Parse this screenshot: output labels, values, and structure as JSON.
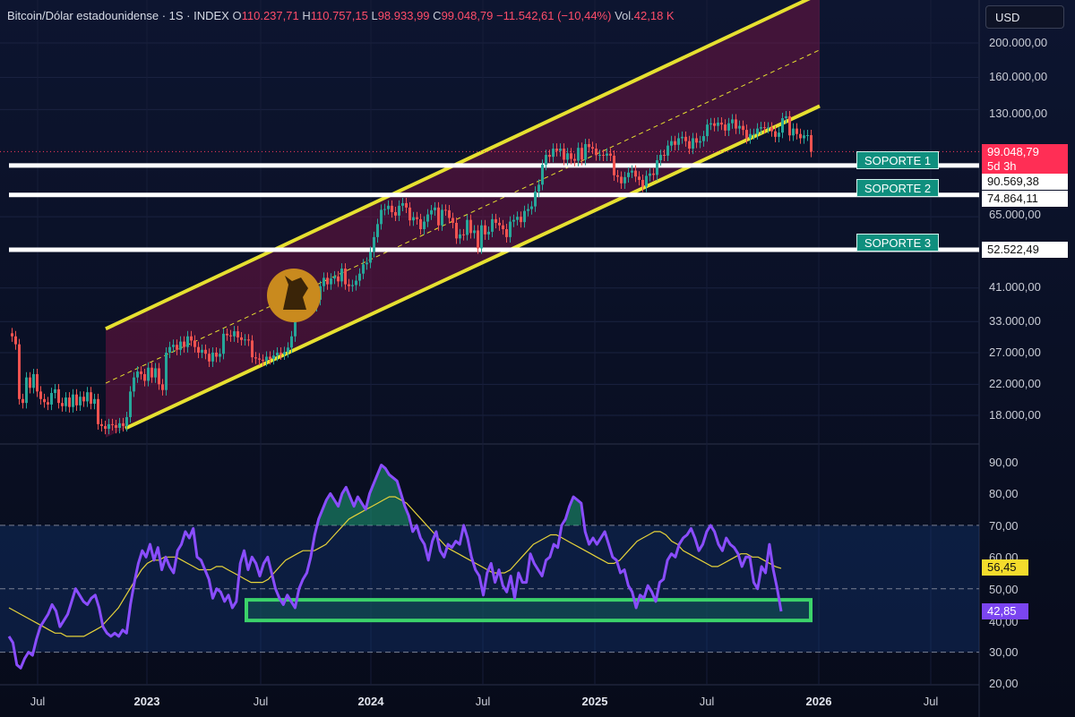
{
  "header": {
    "symbol": "Bitcoin/Dólar estadounidense · 1S · INDEX",
    "o_label": "O",
    "o_value": "110.237,71",
    "h_label": "H",
    "h_value": "110.757,15",
    "l_label": "L",
    "l_value": "98.933,99",
    "c_label": "C",
    "c_value": "99.048,79",
    "change": "−11.542,61 (−10,44%)",
    "vol_label": "Vol.",
    "vol_value": "42,18 K"
  },
  "currency_button": "USD",
  "price_axis": [
    "200.000,00",
    "160.000,00",
    "130.000,00",
    "65.000,00",
    "41.000,00",
    "33.000,00",
    "27.000,00",
    "22.000,00",
    "18.000,00"
  ],
  "rsi_axis": [
    "90,00",
    "80,00",
    "70,00",
    "60,00",
    "50,00",
    "40,00",
    "30,00",
    "20,00"
  ],
  "time_axis": [
    {
      "label": "Jul",
      "bold": false
    },
    {
      "label": "2023",
      "bold": true
    },
    {
      "label": "Jul",
      "bold": false
    },
    {
      "label": "2024",
      "bold": true
    },
    {
      "label": "Jul",
      "bold": false
    },
    {
      "label": "2025",
      "bold": true
    },
    {
      "label": "Jul",
      "bold": false
    },
    {
      "label": "2026",
      "bold": true
    },
    {
      "label": "Jul",
      "bold": false
    }
  ],
  "tags": {
    "last_price": "99.048,79",
    "countdown": "5d 3h",
    "support1_price": "90.569,38",
    "support2_price": "74.864,11",
    "support3_price": "52.522,49",
    "rsi_ma": "56,45",
    "rsi": "42,85"
  },
  "supports": [
    "SOPORTE 1",
    "SOPORTE 2",
    "SOPORTE 3"
  ],
  "colors": {
    "up": "#26a69a",
    "down": "#ef5350",
    "channel": "#e6e030",
    "rsi": "#8a4dff",
    "rsi_ma": "#e6d23a",
    "support_box": "#3bd26a",
    "last_price": "#ff3b5c"
  },
  "chart_data": [
    {
      "type": "candlestick",
      "title": "Bitcoin/Dólar estadounidense · 1S · INDEX",
      "y_scale": "log",
      "ylim": [
        15000,
        250000
      ],
      "x_start": "2022-05",
      "x_end": "2026-10",
      "close_series": [
        30000,
        28500,
        20000,
        19500,
        23000,
        21500,
        23500,
        21000,
        20000,
        19600,
        19300,
        20800,
        21300,
        19500,
        19100,
        20200,
        19000,
        20600,
        19200,
        20300,
        19700,
        20900,
        19400,
        20000,
        17000,
        16800,
        16500,
        17000,
        16900,
        16600,
        17100,
        16800,
        17800,
        21000,
        23000,
        23900,
        23500,
        22500,
        24500,
        23000,
        24400,
        22000,
        21200,
        27000,
        28000,
        28400,
        27500,
        29000,
        28000,
        30000,
        29200,
        28000,
        27000,
        27500,
        26800,
        25500,
        27000,
        26300,
        26800,
        30500,
        30200,
        30000,
        31000,
        29800,
        29300,
        29400,
        29200,
        26200,
        26000,
        25800,
        25600,
        26300,
        25900,
        26500,
        27000,
        26700,
        27100,
        27900,
        30000,
        34500,
        35000,
        37000,
        37500,
        37400,
        36500,
        38000,
        41500,
        43800,
        42000,
        43600,
        44200,
        42800,
        46500,
        42000,
        41500,
        41800,
        43000,
        45000,
        47800,
        48300,
        51800,
        57000,
        62000,
        68000,
        68300,
        69800,
        67000,
        65500,
        69800,
        71000,
        69000,
        63500,
        64800,
        64000,
        60000,
        63000,
        66000,
        67800,
        69000,
        61500,
        68000,
        67800,
        64500,
        62500,
        56500,
        58000,
        57800,
        63700,
        58500,
        59500,
        53000,
        61500,
        58000,
        59000,
        64000,
        62500,
        61500,
        60000,
        57000,
        63000,
        63700,
        65000,
        62800,
        67500,
        68300,
        69500,
        76500,
        80000,
        91000,
        97000,
        95800,
        101000,
        99500,
        101000,
        94000,
        98000,
        94500,
        93400,
        101500,
        94000,
        104000,
        102000,
        101000,
        96800,
        97000,
        96500,
        97800,
        96500,
        85000,
        84200,
        80700,
        84000,
        86500,
        87600,
        84300,
        82500,
        79000,
        84700,
        86000,
        85200,
        93700,
        97000,
        96500,
        103000,
        106000,
        103500,
        108000,
        109000,
        106000,
        101000,
        108000,
        105000,
        106000,
        109500,
        118000,
        119000,
        117000,
        119500,
        118000,
        113500,
        119000,
        122000,
        115000,
        117000,
        114000,
        108000,
        111000,
        111000,
        115000,
        116000,
        115500,
        115800,
        113000,
        109000,
        112000,
        123000,
        124500,
        110000,
        115000,
        111000,
        108000,
        110000,
        110200,
        99000
      ],
      "annotations": [
        "SOPORTE 1",
        "SOPORTE 2",
        "SOPORTE 3"
      ]
    },
    {
      "type": "line",
      "series": [
        {
          "name": "RSI",
          "values": [
            35,
            33,
            26,
            25,
            28,
            30,
            29,
            34,
            38,
            40,
            42,
            45,
            43,
            38,
            40,
            42,
            46,
            50,
            48,
            46,
            45,
            47,
            48,
            44,
            38,
            36,
            35,
            36,
            35,
            37,
            36,
            45,
            52,
            58,
            62,
            60,
            64,
            59,
            63,
            56,
            60,
            57,
            55,
            62,
            64,
            68,
            66,
            69,
            60,
            59,
            56,
            53,
            47,
            50,
            49,
            46,
            48,
            44,
            46,
            58,
            62,
            56,
            60,
            58,
            54,
            58,
            60,
            55,
            50,
            47,
            45,
            48,
            46,
            44,
            50,
            53,
            55,
            60,
            67,
            72,
            75,
            78,
            80,
            78,
            76,
            80,
            82,
            79,
            76,
            79,
            77,
            75,
            80,
            83,
            86,
            89,
            88,
            86,
            85,
            84,
            80,
            76,
            73,
            68,
            70,
            66,
            64,
            59,
            65,
            68,
            62,
            60,
            64,
            63,
            65,
            64,
            70,
            66,
            60,
            56,
            54,
            48,
            55,
            58,
            52,
            56,
            51,
            49,
            54,
            47,
            55,
            52,
            52,
            61,
            58,
            56,
            54,
            59,
            60,
            64,
            63,
            70,
            72,
            76,
            79,
            78,
            77,
            68,
            64,
            66,
            64,
            66,
            68,
            64,
            60,
            59,
            55,
            56,
            51,
            49,
            44,
            48,
            47,
            51,
            49,
            46,
            52,
            53,
            59,
            61,
            60,
            64,
            66,
            67,
            69,
            66,
            62,
            64,
            68,
            70,
            68,
            64,
            62,
            66,
            64,
            63,
            61,
            57,
            60,
            60,
            52,
            50,
            57,
            55,
            64,
            56,
            50,
            42.85
          ]
        },
        {
          "name": "RSI-based MA",
          "values": [
            44,
            43,
            42,
            41,
            40,
            39,
            38,
            37,
            36,
            36,
            35,
            35,
            35,
            35,
            36,
            37,
            38,
            40,
            42,
            44,
            47,
            50,
            53,
            56,
            58,
            59,
            59,
            60,
            60,
            60,
            59,
            58,
            57,
            56,
            56,
            56,
            57,
            57,
            56,
            55,
            54,
            53,
            52,
            52,
            52,
            53,
            55,
            57,
            59,
            60,
            61,
            62,
            62,
            62,
            63,
            64,
            66,
            68,
            70,
            72,
            73,
            74,
            75,
            76,
            77,
            78,
            79,
            79,
            78,
            77,
            75,
            73,
            71,
            69,
            67,
            65,
            63,
            62,
            61,
            60,
            59,
            58,
            57,
            56,
            55,
            55,
            55,
            56,
            58,
            60,
            62,
            64,
            65,
            66,
            67,
            67,
            66,
            65,
            64,
            63,
            62,
            61,
            60,
            59,
            58,
            58,
            59,
            61,
            63,
            65,
            66,
            67,
            68,
            68,
            67,
            65,
            64,
            62,
            61,
            60,
            59,
            58,
            57,
            57,
            58,
            59,
            60,
            61,
            61,
            60,
            60,
            59,
            58,
            57,
            56.45
          ]
        }
      ],
      "reference_lines": [
        70,
        50,
        30
      ],
      "ylim": [
        20,
        90
      ]
    }
  ]
}
